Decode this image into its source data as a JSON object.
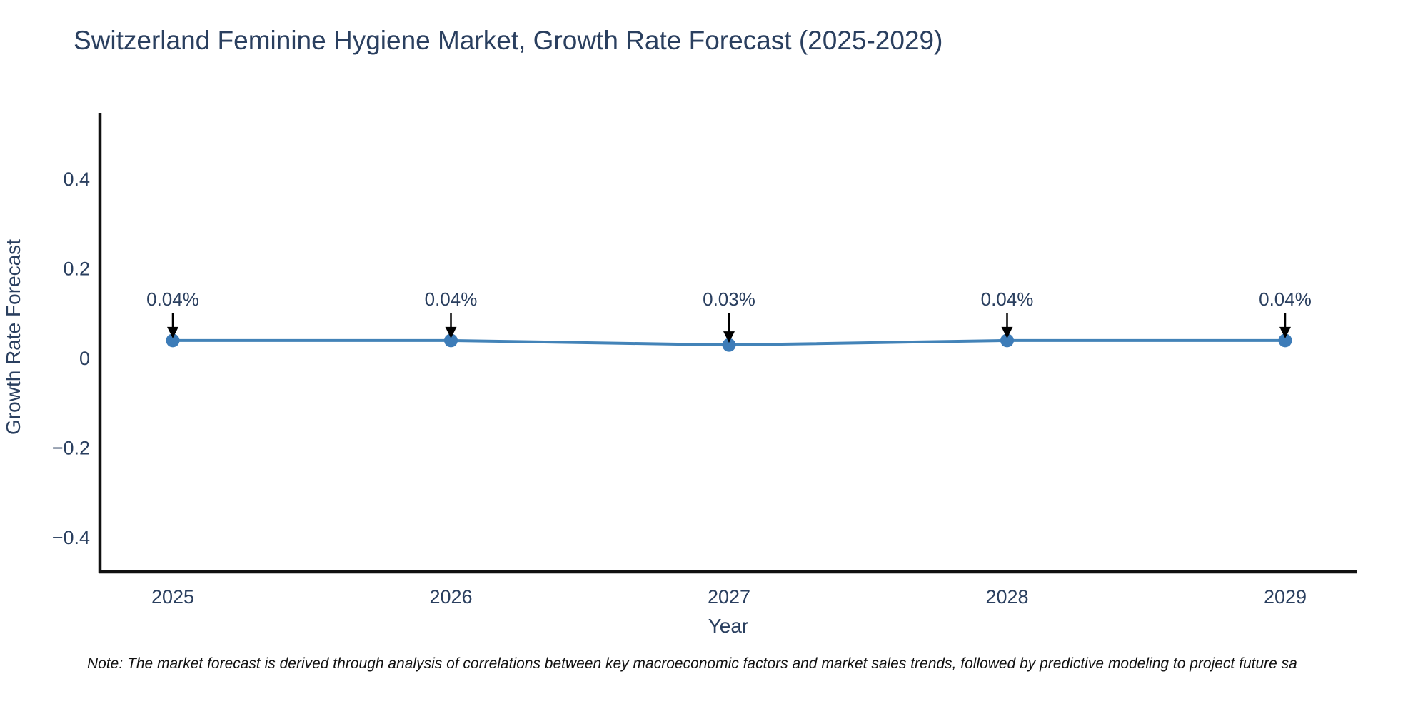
{
  "chart_data": {
    "type": "line",
    "title": "Switzerland Feminine Hygiene Market, Growth Rate Forecast (2025-2029)",
    "xlabel": "Year",
    "ylabel": "Growth Rate Forecast",
    "x": [
      2025,
      2026,
      2027,
      2028,
      2029
    ],
    "values": [
      0.04,
      0.04,
      0.03,
      0.04,
      0.04
    ],
    "point_labels": [
      "0.04%",
      "0.04%",
      "0.03%",
      "0.04%",
      "0.04%"
    ],
    "y_ticks": [
      0.4,
      0.2,
      0,
      -0.2,
      -0.4
    ],
    "ylim": [
      -0.47,
      0.55
    ],
    "grid": false,
    "legend": "none",
    "colors": {
      "line": "#4383b8",
      "marker": "#3d7cb8",
      "axis_line": "#111111",
      "tick_text": "#2a3f5f",
      "annotation_text": "#2a3f5f",
      "annotation_arrow": "#000000",
      "title_text": "#2a3f5f"
    }
  },
  "note": {
    "text": "Note: The market forecast is derived through analysis of correlations between key macroeconomic factors and market sales trends, followed by predictive modeling to project future sa"
  }
}
